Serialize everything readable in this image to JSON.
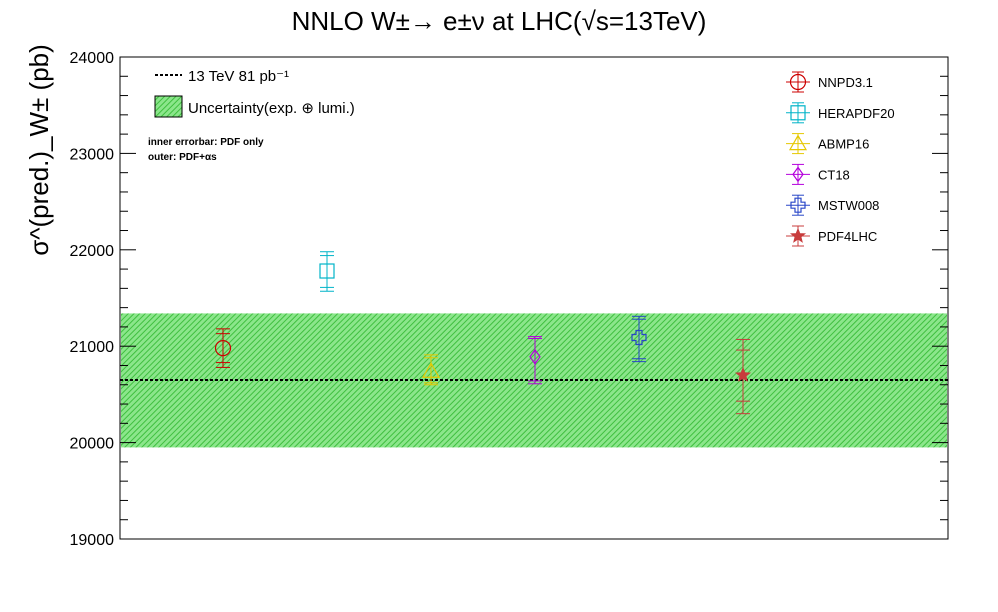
{
  "chart_data": {
    "type": "scatter",
    "title": "NNLO W±→ e±ν at LHC(√s=13TeV)",
    "ylabel": "σ^(pred.)_W± (pb)",
    "xlabel": "",
    "ylim": [
      19000,
      24000
    ],
    "yticks": [
      "19000",
      "20000",
      "21000",
      "22000",
      "23000",
      "24000"
    ],
    "measurement": {
      "label": "13 TeV 81 pb⁻¹",
      "value": 20650,
      "band_label": "Uncertainty(exp. ⊕ lumi.)",
      "band_low": 19950,
      "band_high": 21340,
      "band_color": "#5fd35f"
    },
    "notes": [
      "inner errorbar: PDF only",
      "outer: PDF+αs"
    ],
    "series": [
      {
        "name": "NNPD3.1",
        "marker": "circle",
        "color": "#cc0000",
        "value": 20980,
        "inner": [
          20830,
          21130
        ],
        "outer": [
          20780,
          21180
        ]
      },
      {
        "name": "HERAPDF20",
        "marker": "square",
        "color": "#00b4c8",
        "value": 21780,
        "inner": [
          21610,
          21940
        ],
        "outer": [
          21570,
          21980
        ]
      },
      {
        "name": "ABMP16",
        "marker": "triangle",
        "color": "#e6c800",
        "value": 20740,
        "inner": [
          20620,
          20880
        ],
        "outer": [
          20600,
          20910
        ]
      },
      {
        "name": "CT18",
        "marker": "diamond",
        "color": "#b400dc",
        "value": 20890,
        "inner": [
          20640,
          21080
        ],
        "outer": [
          20610,
          21100
        ]
      },
      {
        "name": "MSTW008",
        "marker": "cross",
        "color": "#2846c8",
        "value": 21090,
        "inner": [
          20870,
          21280
        ],
        "outer": [
          20840,
          21310
        ]
      },
      {
        "name": "PDF4LHC",
        "marker": "star",
        "color": "#c83c3c",
        "value": 20700,
        "inner": [
          20430,
          20960
        ],
        "outer": [
          20300,
          21070
        ]
      }
    ]
  }
}
